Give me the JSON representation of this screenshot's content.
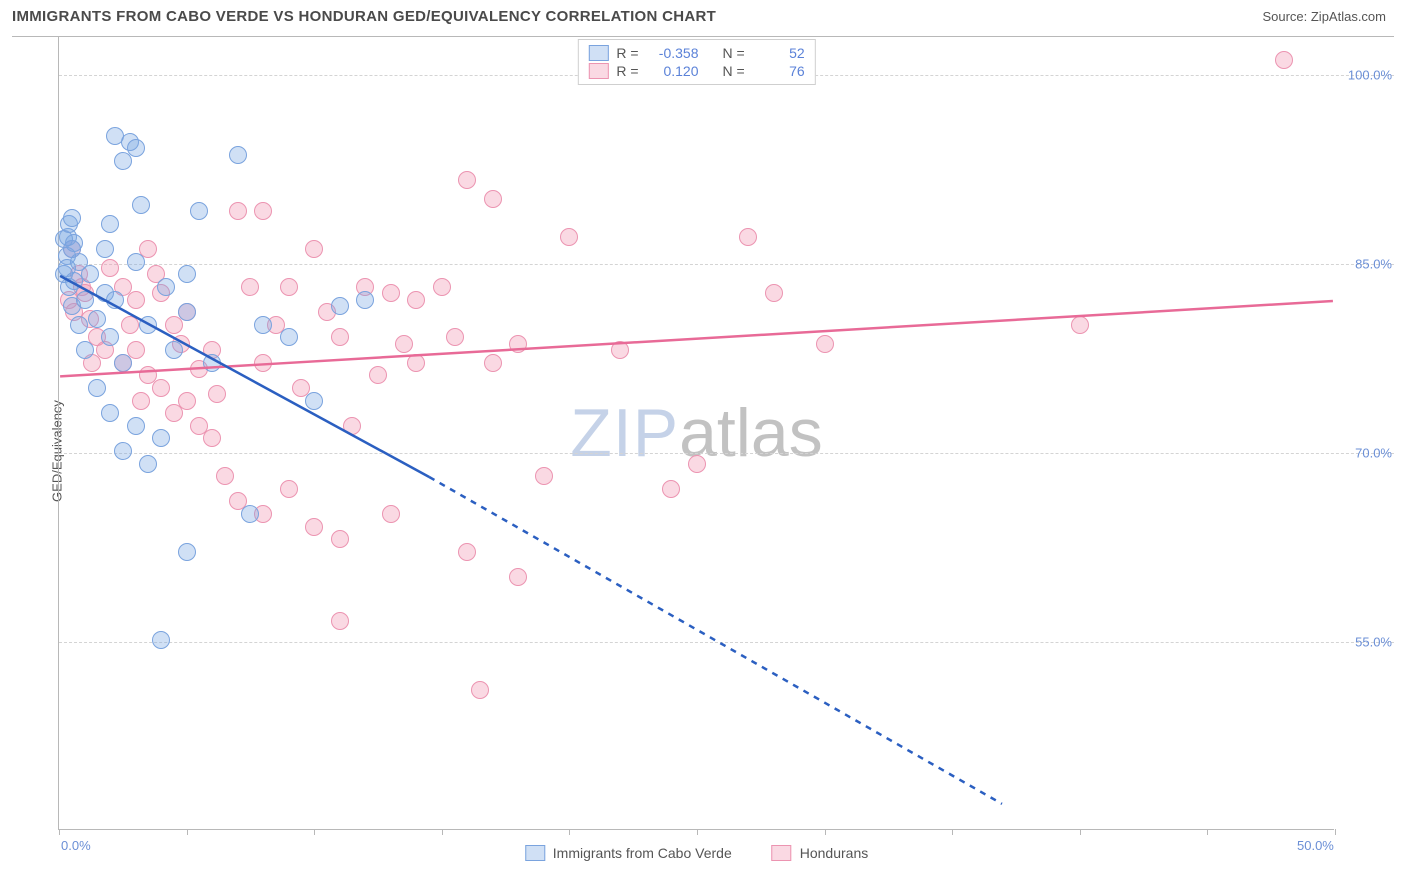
{
  "header": {
    "title": "IMMIGRANTS FROM CABO VERDE VS HONDURAN GED/EQUIVALENCY CORRELATION CHART",
    "source_prefix": "Source: ",
    "source_name": "ZipAtlas.com"
  },
  "ylabel": "GED/Equivalency",
  "watermark": {
    "zip": "ZIP",
    "atlas": "atlas"
  },
  "chart": {
    "type": "scatter",
    "xlim": [
      0,
      50
    ],
    "ylim": [
      40,
      103
    ],
    "y_ticks": [
      55.0,
      70.0,
      85.0,
      100.0
    ],
    "y_tick_labels": [
      "55.0%",
      "70.0%",
      "85.0%",
      "100.0%"
    ],
    "x_ticks": [
      0,
      5,
      10,
      15,
      20,
      25,
      30,
      35,
      40,
      45,
      50
    ],
    "x_tick_label_left": "0.0%",
    "x_tick_label_right": "50.0%",
    "background_color": "#ffffff",
    "grid_color": "#d4d4d4",
    "axis_color": "#b8b8b8",
    "tick_label_color": "#6b8fd6",
    "marker_radius": 9
  },
  "series": [
    {
      "id": "cabo_verde",
      "label": "Immigrants from Cabo Verde",
      "fill": "rgba(120,165,225,0.35)",
      "stroke": "#7aa3de",
      "line_color": "#2b5fc1",
      "line_extrapolate_dash": "6,6",
      "R": "-0.358",
      "N": "52",
      "trend": {
        "x1": 0,
        "y1": 84,
        "x2": 14.5,
        "y2": 68,
        "x2_ext": 37,
        "y2_ext": 42
      },
      "points": [
        [
          0.2,
          84
        ],
        [
          0.3,
          85.5
        ],
        [
          0.35,
          87
        ],
        [
          0.4,
          88
        ],
        [
          0.5,
          86
        ],
        [
          0.6,
          83.5
        ],
        [
          0.4,
          83
        ],
        [
          0.5,
          81.5
        ],
        [
          0.3,
          84.5
        ],
        [
          0.8,
          85
        ],
        [
          0.6,
          86.5
        ],
        [
          0.5,
          88.5
        ],
        [
          0.2,
          86.8
        ],
        [
          2.2,
          95
        ],
        [
          2.8,
          94.5
        ],
        [
          2.5,
          93
        ],
        [
          3,
          94
        ],
        [
          3.2,
          89.5
        ],
        [
          2,
          88
        ],
        [
          1,
          82
        ],
        [
          1.5,
          80.5
        ],
        [
          1.2,
          84
        ],
        [
          1.8,
          82.5
        ],
        [
          2,
          79
        ],
        [
          2.5,
          77
        ],
        [
          3,
          85
        ],
        [
          1.5,
          75
        ],
        [
          1,
          78
        ],
        [
          2,
          73
        ],
        [
          2.5,
          70
        ],
        [
          3,
          72
        ],
        [
          3.5,
          69
        ],
        [
          4,
          71
        ],
        [
          5,
          84
        ],
        [
          5.5,
          89
        ],
        [
          7,
          93.5
        ],
        [
          7.5,
          65
        ],
        [
          4.5,
          78
        ],
        [
          5,
          81
        ],
        [
          6,
          77
        ],
        [
          4,
          55
        ],
        [
          5,
          62
        ],
        [
          10,
          74
        ],
        [
          11,
          81.5
        ],
        [
          12,
          82
        ],
        [
          8,
          80
        ],
        [
          9,
          79
        ],
        [
          3.5,
          80
        ],
        [
          4.2,
          83
        ],
        [
          1.8,
          86
        ],
        [
          2.2,
          82
        ],
        [
          0.8,
          80
        ]
      ]
    },
    {
      "id": "hondurans",
      "label": "Hondurans",
      "fill": "rgba(240,145,175,0.35)",
      "stroke": "#ec94b1",
      "line_color": "#e86a97",
      "R": "0.120",
      "N": "76",
      "trend": {
        "x1": 0,
        "y1": 76,
        "x2": 50,
        "y2": 82
      },
      "points": [
        [
          0.5,
          86
        ],
        [
          0.8,
          84
        ],
        [
          1,
          82.5
        ],
        [
          1.2,
          80.5
        ],
        [
          1.5,
          79
        ],
        [
          0.6,
          81
        ],
        [
          0.9,
          83
        ],
        [
          2,
          84.5
        ],
        [
          2.5,
          83
        ],
        [
          3,
          82
        ],
        [
          3.5,
          86
        ],
        [
          4,
          82.5
        ],
        [
          4.5,
          80
        ],
        [
          5,
          81
        ],
        [
          3,
          78
        ],
        [
          3.5,
          76
        ],
        [
          4,
          75
        ],
        [
          4.5,
          73
        ],
        [
          5,
          74
        ],
        [
          5.5,
          76.5
        ],
        [
          6,
          78
        ],
        [
          7,
          89
        ],
        [
          8,
          89
        ],
        [
          9,
          83
        ],
        [
          10,
          86
        ],
        [
          10.5,
          81
        ],
        [
          11,
          79
        ],
        [
          8,
          77
        ],
        [
          6,
          71
        ],
        [
          6.5,
          68
        ],
        [
          7,
          66
        ],
        [
          8,
          65
        ],
        [
          9,
          67
        ],
        [
          10,
          64
        ],
        [
          11,
          63
        ],
        [
          12,
          83
        ],
        [
          13,
          82.5
        ],
        [
          14,
          82
        ],
        [
          15,
          83
        ],
        [
          13.5,
          78.5
        ],
        [
          12.5,
          76
        ],
        [
          14,
          77
        ],
        [
          15.5,
          79
        ],
        [
          16,
          91.5
        ],
        [
          17,
          90
        ],
        [
          17,
          77
        ],
        [
          18,
          78.5
        ],
        [
          20,
          87
        ],
        [
          19,
          68
        ],
        [
          18,
          60
        ],
        [
          16,
          62
        ],
        [
          16.5,
          51
        ],
        [
          11,
          56.5
        ],
        [
          13,
          65
        ],
        [
          22,
          78
        ],
        [
          24,
          67
        ],
        [
          25,
          69
        ],
        [
          27,
          87
        ],
        [
          28,
          82.5
        ],
        [
          30,
          78.5
        ],
        [
          40,
          80
        ],
        [
          48,
          101
        ],
        [
          7.5,
          83
        ],
        [
          8.5,
          80
        ],
        [
          9.5,
          75
        ],
        [
          11.5,
          72
        ],
        [
          2.5,
          77
        ],
        [
          3.2,
          74
        ],
        [
          4.8,
          78.5
        ],
        [
          5.5,
          72
        ],
        [
          6.2,
          74.5
        ],
        [
          1.8,
          78
        ],
        [
          0.4,
          82
        ],
        [
          1.3,
          77
        ],
        [
          2.8,
          80
        ],
        [
          3.8,
          84
        ]
      ]
    }
  ],
  "legend_top": {
    "r_label": "R =",
    "n_label": "N ="
  }
}
